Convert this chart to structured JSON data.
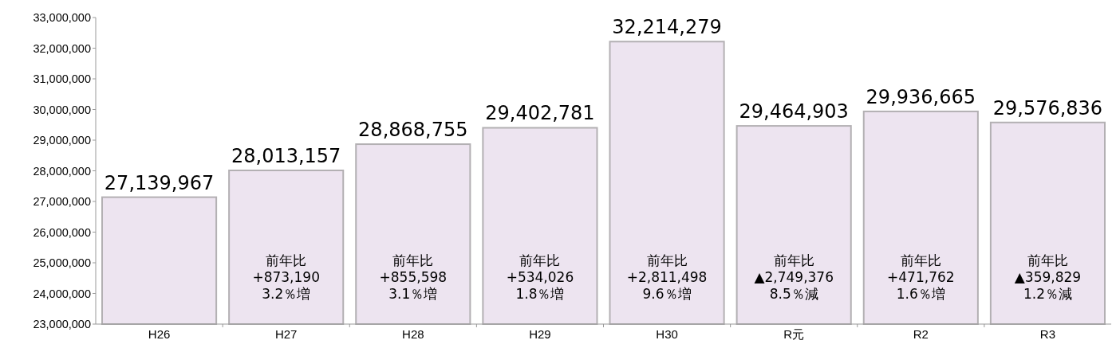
{
  "chart_data": {
    "type": "bar",
    "categories": [
      "H26",
      "H27",
      "H28",
      "H29",
      "H30",
      "R元",
      "R2",
      "R3"
    ],
    "values": [
      27139967,
      28013157,
      28868755,
      29402781,
      32214279,
      29464903,
      29936665,
      29576836
    ],
    "value_labels": [
      "27,139,967",
      "28,013,157",
      "28,868,755",
      "29,402,781",
      "32,214,279",
      "29,464,903",
      "29,936,665",
      "29,576,836"
    ],
    "color": "#ede4f0",
    "ylim": [
      23000000,
      33000000
    ],
    "yticks": [
      {
        "value": 23000000,
        "label": "23,000,000"
      },
      {
        "value": 24000000,
        "label": "24,000,000"
      },
      {
        "value": 25000000,
        "label": "25,000,000"
      },
      {
        "value": 26000000,
        "label": "26,000,000"
      },
      {
        "value": 27000000,
        "label": "27,000,000"
      },
      {
        "value": 28000000,
        "label": "28,000,000"
      },
      {
        "value": 29000000,
        "label": "29,000,000"
      },
      {
        "value": 30000000,
        "label": "30,000,000"
      },
      {
        "value": 31000000,
        "label": "31,000,000"
      },
      {
        "value": 32000000,
        "label": "32,000,000"
      },
      {
        "value": 33000000,
        "label": "33,000,000"
      }
    ],
    "annotations": [
      "前年比\n+873,190\n3.2％増",
      "前年比\n+855,598\n3.1％増",
      "前年比\n+534,026\n1.8％増",
      "前年比\n+2,811,498\n9.6％増",
      "前年比\n▲2,749,376\n8.5％減",
      "前年比\n+471,762\n1.6％増",
      "前年比\n▲359,829\n1.2％減"
    ]
  }
}
